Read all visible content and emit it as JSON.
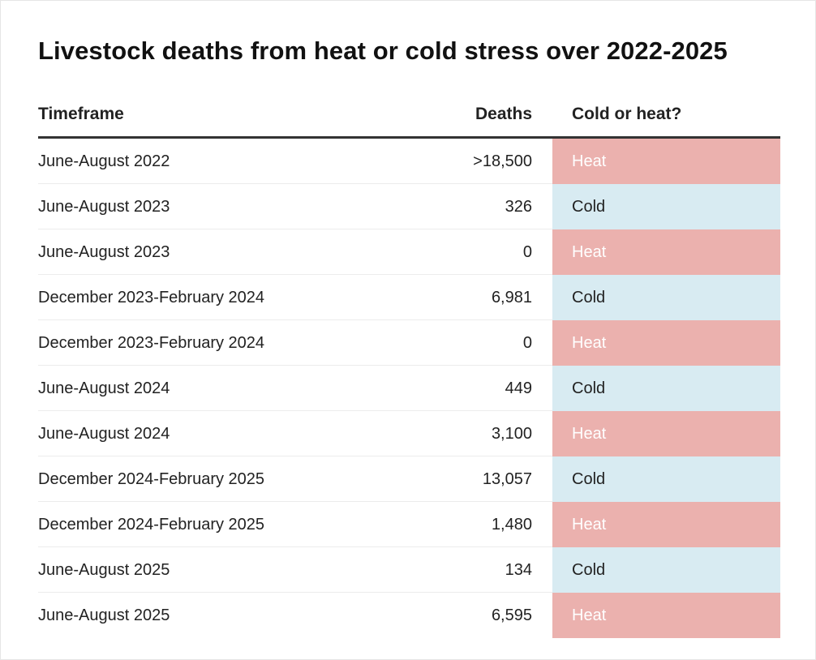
{
  "chart_data": {
    "type": "table",
    "title": "Livestock deaths from heat or cold stress over 2022-2025",
    "columns": [
      "Timeframe",
      "Deaths",
      "Cold or heat?"
    ],
    "rows": [
      {
        "timeframe": "June-August 2022",
        "deaths": ">18,500",
        "type": "Heat"
      },
      {
        "timeframe": "June-August 2023",
        "deaths": "326",
        "type": "Cold"
      },
      {
        "timeframe": "June-August 2023",
        "deaths": "0",
        "type": "Heat"
      },
      {
        "timeframe": "December 2023-February 2024",
        "deaths": "6,981",
        "type": "Cold"
      },
      {
        "timeframe": "December 2023-February 2024",
        "deaths": "0",
        "type": "Heat"
      },
      {
        "timeframe": "June-August 2024",
        "deaths": "449",
        "type": "Cold"
      },
      {
        "timeframe": "June-August 2024",
        "deaths": "3,100",
        "type": "Heat"
      },
      {
        "timeframe": "December 2024-February 2025",
        "deaths": "13,057",
        "type": "Cold"
      },
      {
        "timeframe": "December 2024-February 2025",
        "deaths": "1,480",
        "type": "Heat"
      },
      {
        "timeframe": "June-August 2025",
        "deaths": "134",
        "type": "Cold"
      },
      {
        "timeframe": "June-August 2025",
        "deaths": "6,595",
        "type": "Heat"
      }
    ],
    "colors": {
      "heat": "#ebb1ae",
      "cold": "#d8ebf2"
    }
  }
}
